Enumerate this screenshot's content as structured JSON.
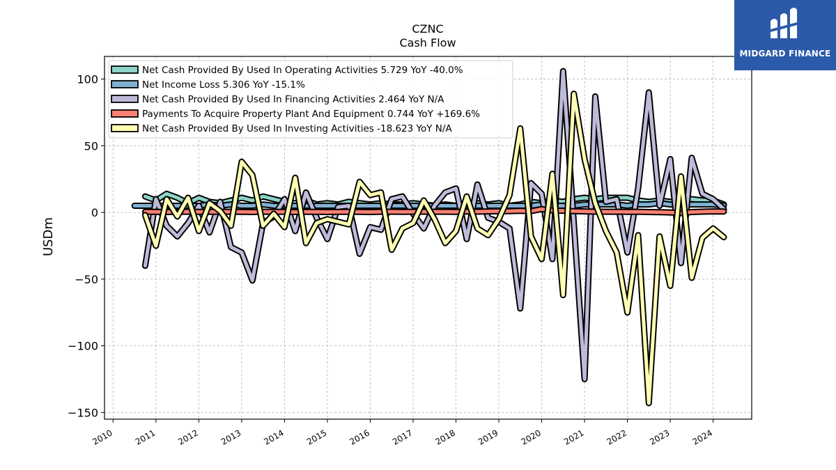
{
  "brand": {
    "name": "MIDGARD FINANCE",
    "color": "#2b5aa8",
    "icon": "midgard-logo-icon"
  },
  "chart_data": {
    "type": "line",
    "title": "CZNC",
    "subtitle": "Cash Flow",
    "xlabel": "",
    "ylabel": "USDm",
    "xlim": [
      2009.8,
      2024.9
    ],
    "ylim": [
      -155,
      117
    ],
    "x_ticks": [
      "2010",
      "2011",
      "2012",
      "2013",
      "2014",
      "2015",
      "2016",
      "2017",
      "2018",
      "2019",
      "2020",
      "2021",
      "2022",
      "2023",
      "2024"
    ],
    "y_ticks": [
      {
        "value": 100,
        "label": "100"
      },
      {
        "value": 50,
        "label": "50"
      },
      {
        "value": 0,
        "label": "0"
      },
      {
        "value": -50,
        "label": "−50"
      },
      {
        "value": -100,
        "label": "−100"
      },
      {
        "value": -150,
        "label": "−150"
      }
    ],
    "grid": true,
    "legend_position": "top-left",
    "series": [
      {
        "name": "Net Cash Provided By Used In Operating Activities",
        "legend_label": "Net Cash Provided By Used In Operating Activities  5.729 YoY -40.0%",
        "color": "#8dd3c7",
        "x": [
          2010.75,
          2011.0,
          2011.25,
          2011.5,
          2011.75,
          2012.0,
          2012.25,
          2012.5,
          2012.75,
          2013.0,
          2013.25,
          2013.5,
          2013.75,
          2014.0,
          2014.25,
          2014.5,
          2014.75,
          2015.0,
          2015.25,
          2015.5,
          2015.75,
          2016.0,
          2016.25,
          2016.5,
          2016.75,
          2017.0,
          2017.25,
          2017.5,
          2017.75,
          2018.0,
          2018.25,
          2018.5,
          2018.75,
          2019.0,
          2019.25,
          2019.5,
          2019.75,
          2020.0,
          2020.25,
          2020.5,
          2020.75,
          2021.0,
          2021.25,
          2021.5,
          2021.75,
          2022.0,
          2022.25,
          2022.5,
          2022.75,
          2023.0,
          2023.25,
          2023.5,
          2023.75,
          2024.0,
          2024.25
        ],
        "values": [
          12,
          9,
          14,
          11,
          7,
          11,
          8,
          7,
          9,
          11,
          9,
          12,
          10,
          8,
          7,
          9,
          6,
          7,
          6,
          8,
          7,
          6,
          7,
          6,
          6,
          7,
          6,
          5,
          6,
          5,
          6,
          7,
          6,
          7,
          5,
          6,
          8,
          7,
          9,
          8,
          10,
          11,
          10,
          11,
          11,
          11,
          9,
          8,
          9,
          8,
          9,
          10,
          9,
          9,
          6
        ]
      },
      {
        "name": "Net Income Loss",
        "legend_label": "Net Income Loss  5.306 YoY -15.1%",
        "color": "#80b1d3",
        "x": [
          2010.5,
          2010.75,
          2011.0,
          2011.25,
          2011.5,
          2011.75,
          2012.0,
          2012.25,
          2012.5,
          2012.75,
          2013.0,
          2013.25,
          2013.5,
          2013.75,
          2014.0,
          2014.25,
          2014.5,
          2014.75,
          2015.0,
          2015.25,
          2015.5,
          2015.75,
          2016.0,
          2016.25,
          2016.5,
          2016.75,
          2017.0,
          2017.25,
          2017.5,
          2017.75,
          2018.0,
          2018.25,
          2018.5,
          2018.75,
          2019.0,
          2019.25,
          2019.5,
          2019.75,
          2020.0,
          2020.25,
          2020.5,
          2020.75,
          2021.0,
          2021.25,
          2021.5,
          2021.75,
          2022.0,
          2022.25,
          2022.5,
          2022.75,
          2023.0,
          2023.25,
          2023.5,
          2023.75,
          2024.0,
          2024.25
        ],
        "values": [
          5,
          5,
          5,
          5,
          5,
          5,
          5,
          6,
          5,
          6,
          5,
          5,
          6,
          5,
          5,
          5,
          5,
          5,
          5,
          5,
          5,
          5,
          5,
          5,
          5,
          5,
          5,
          5,
          5,
          5,
          5,
          5,
          5,
          5,
          5,
          5,
          5,
          5,
          6,
          5,
          5,
          5,
          6,
          6,
          6,
          6,
          5,
          6,
          6,
          7,
          6,
          6,
          6,
          6,
          6,
          5.3
        ]
      },
      {
        "name": "Net Cash Provided By Used In Financing Activities",
        "legend_label": "Net Cash Provided By Used In Financing Activities  2.464 YoY N/A",
        "color": "#bebada",
        "x": [
          2010.75,
          2011.0,
          2011.25,
          2011.5,
          2011.75,
          2012.0,
          2012.25,
          2012.5,
          2012.75,
          2013.0,
          2013.25,
          2013.5,
          2013.75,
          2014.0,
          2014.25,
          2014.5,
          2014.75,
          2015.0,
          2015.25,
          2015.5,
          2015.75,
          2016.0,
          2016.25,
          2016.5,
          2016.75,
          2017.0,
          2017.25,
          2017.5,
          2017.75,
          2018.0,
          2018.25,
          2018.5,
          2018.75,
          2019.0,
          2019.25,
          2019.5,
          2019.75,
          2020.0,
          2020.25,
          2020.5,
          2020.75,
          2021.0,
          2021.25,
          2021.5,
          2021.75,
          2022.0,
          2022.25,
          2022.5,
          2022.75,
          2023.0,
          2023.25,
          2023.5,
          2023.75,
          2024.0,
          2024.25
        ],
        "values": [
          -40,
          10,
          -10,
          -18,
          -8,
          5,
          -15,
          8,
          -26,
          -30,
          -51,
          -8,
          -3,
          10,
          -14,
          15,
          -4,
          -20,
          4,
          5,
          -31,
          -11,
          -13,
          10,
          12,
          -1,
          -12,
          5,
          15,
          18,
          -20,
          21,
          -4,
          -7,
          -12,
          -72,
          22,
          14,
          -35,
          106,
          -8,
          -125,
          87,
          8,
          10,
          -30,
          18,
          90,
          5,
          40,
          -38,
          41,
          14,
          10,
          2.5
        ]
      },
      {
        "name": "Payments To Acquire Property Plant And Equipment",
        "legend_label": "Payments To Acquire Property Plant And Equipment  0.744 YoY +169.6%",
        "color": "#fb8072",
        "x": [
          2010.75,
          2011.0,
          2011.25,
          2011.5,
          2011.75,
          2012.0,
          2012.25,
          2012.5,
          2012.75,
          2013.0,
          2013.25,
          2013.5,
          2013.75,
          2014.0,
          2014.25,
          2014.5,
          2014.75,
          2015.0,
          2015.25,
          2015.5,
          2015.75,
          2016.0,
          2016.25,
          2016.5,
          2016.75,
          2017.0,
          2017.25,
          2017.5,
          2017.75,
          2018.0,
          2018.25,
          2018.5,
          2018.75,
          2019.0,
          2019.25,
          2019.5,
          2019.75,
          2020.0,
          2020.25,
          2020.5,
          2020.75,
          2021.0,
          2021.25,
          2021.5,
          2021.75,
          2022.0,
          2022.25,
          2022.5,
          2022.75,
          2023.0,
          2023.25,
          2023.5,
          2023.75,
          2024.0,
          2024.25
        ],
        "values": [
          0.5,
          0.4,
          0.3,
          0.5,
          0.6,
          0.4,
          0.4,
          0.5,
          0.5,
          0.4,
          0.3,
          0.5,
          0.4,
          0.4,
          0.3,
          0.4,
          0.4,
          0.3,
          0.4,
          0.5,
          0.4,
          0.3,
          0.5,
          0.6,
          0.4,
          0.5,
          0.6,
          0.5,
          0.5,
          0.4,
          0.7,
          0.6,
          0.8,
          0.9,
          1.0,
          1.2,
          1.0,
          2.5,
          1.5,
          1.2,
          1.0,
          0.8,
          0.6,
          0.5,
          0.5,
          0.4,
          0.5,
          0.3,
          0.2,
          0.0,
          -0.5,
          0.3,
          0.6,
          0.8,
          0.744
        ]
      },
      {
        "name": "Net Cash Provided By Used In Investing Activities",
        "legend_label": "Net Cash Provided By Used In Investing Activities  -18.623 YoY N/A",
        "color": "#ffffb3",
        "x": [
          2010.75,
          2011.0,
          2011.25,
          2011.5,
          2011.75,
          2012.0,
          2012.25,
          2012.5,
          2012.75,
          2013.0,
          2013.25,
          2013.5,
          2013.75,
          2014.0,
          2014.25,
          2014.5,
          2014.75,
          2015.0,
          2015.25,
          2015.5,
          2015.75,
          2016.0,
          2016.25,
          2016.5,
          2016.75,
          2017.0,
          2017.25,
          2017.5,
          2017.75,
          2018.0,
          2018.25,
          2018.5,
          2018.75,
          2019.0,
          2019.25,
          2019.5,
          2019.75,
          2020.0,
          2020.25,
          2020.5,
          2020.75,
          2021.0,
          2021.25,
          2021.5,
          2021.75,
          2022.0,
          2022.25,
          2022.5,
          2022.75,
          2023.0,
          2023.25,
          2023.5,
          2023.75,
          2024.0,
          2024.25
        ],
        "values": [
          -2,
          -25,
          10,
          -3,
          11,
          -14,
          7,
          1,
          -10,
          38,
          28,
          -10,
          -1,
          -11,
          26,
          -23,
          -8,
          -5,
          -7,
          -9,
          23,
          13,
          15,
          -28,
          -12,
          -8,
          9,
          -5,
          -23,
          -14,
          12,
          -12,
          -17,
          -5,
          13,
          63,
          -18,
          -35,
          29,
          -62,
          89,
          40,
          7,
          -14,
          -30,
          -75,
          -17,
          -143,
          -18,
          -55,
          27,
          -49,
          -19,
          -12,
          -18.6
        ]
      }
    ]
  }
}
